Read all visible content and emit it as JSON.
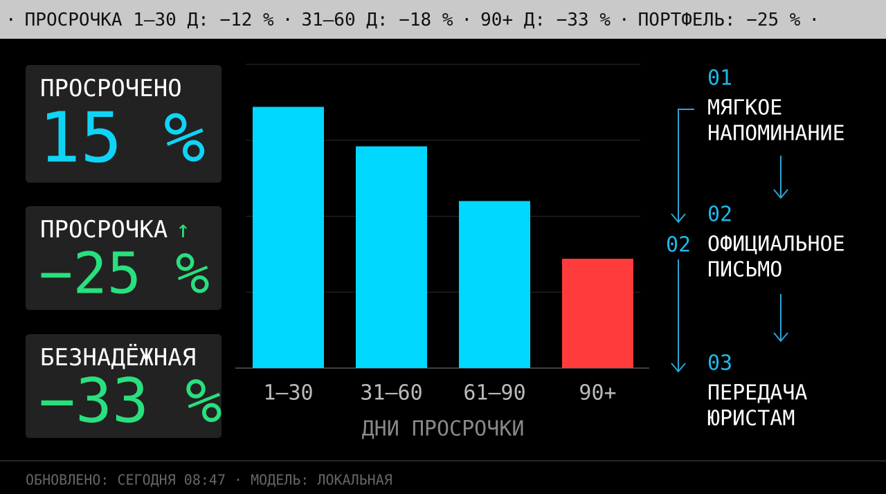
{
  "ticker": {
    "separator": "·",
    "items": [
      "ПРОСРОЧКА 1–30 Д: −12 %",
      "31–60 Д: −18 %",
      "90+ Д: −33 %",
      "ПОРТФЕЛЬ: −25 %"
    ]
  },
  "cards": [
    {
      "label": "ПРОСРОЧЕНО",
      "value": "15 %"
    },
    {
      "label": "ПРОСРОЧКА",
      "trend": "↑",
      "value": "−25 %"
    },
    {
      "label": "БЕЗНАДЁЖНАЯ",
      "value": "−33 %"
    }
  ],
  "chart_data": {
    "type": "bar",
    "x_label": "ДНИ ПРОСРОЧКИ",
    "categories": [
      "1–30",
      "31–60",
      "61–90",
      "90+"
    ],
    "values": [
      86,
      73,
      55,
      36
    ],
    "colors": [
      "#00d8ff",
      "#00d8ff",
      "#00d8ff",
      "#ff3b3b"
    ],
    "ylim": [
      0,
      100
    ],
    "yticks": [
      0,
      25,
      50,
      75,
      100
    ],
    "grid": true
  },
  "flow": {
    "current": "02",
    "steps": [
      {
        "number": "01",
        "lines": [
          "МЯГКОЕ",
          "НАПОМИНАНИЕ"
        ]
      },
      {
        "number": "02",
        "lines": [
          "ОФИЦИАЛЬНОЕ",
          "ПИСЬМО"
        ]
      },
      {
        "number": "03",
        "lines": [
          "ПЕРЕДАЧА",
          "ЮРИСТАМ"
        ]
      }
    ]
  },
  "footer": "ОБНОВЛЕНО: СЕГОДНЯ 08:47 · МОДЕЛЬ: ЛОКАЛЬНАЯ"
}
